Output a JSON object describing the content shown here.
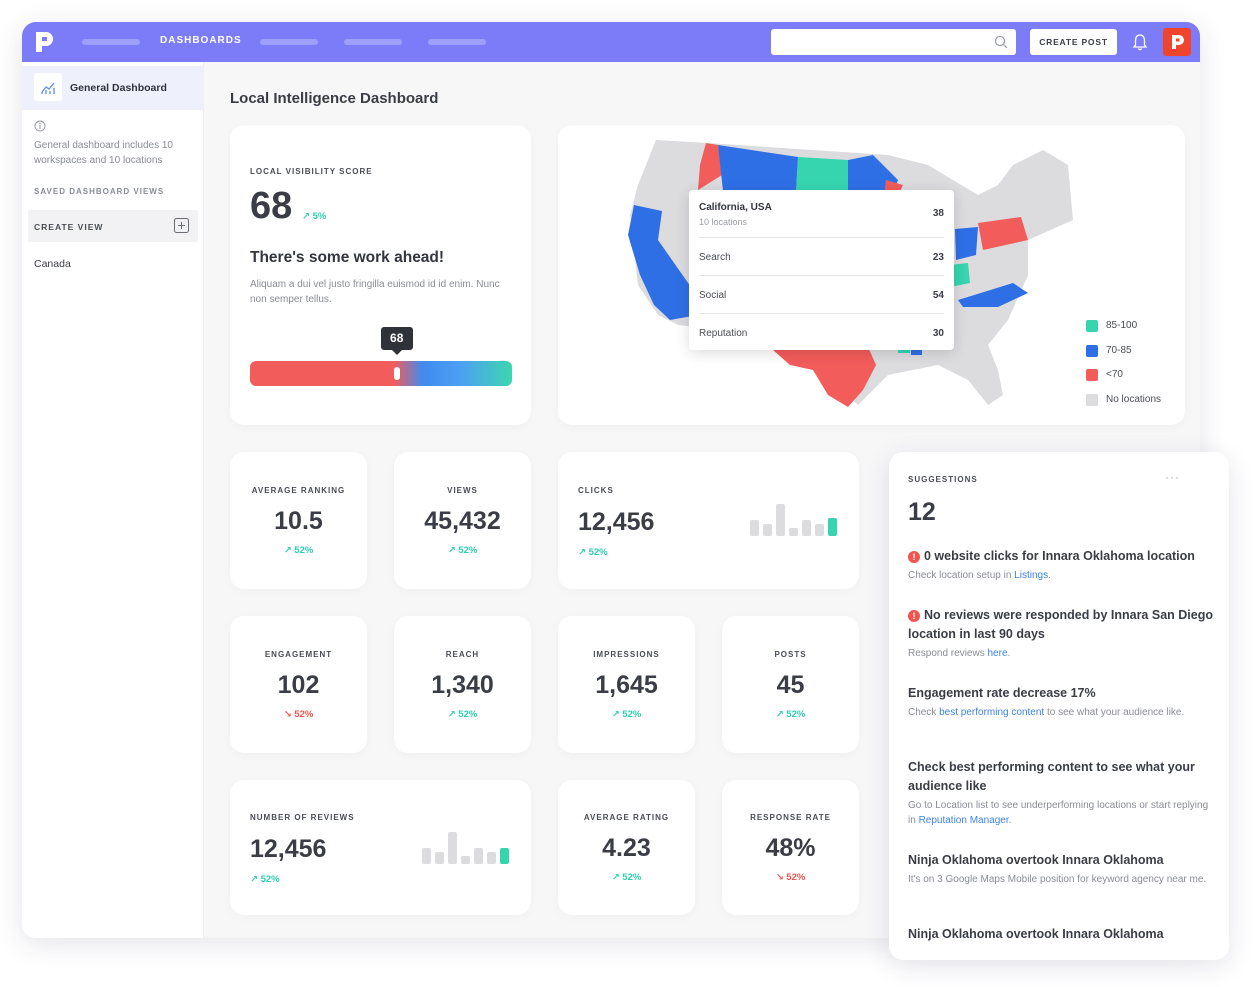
{
  "topbar": {
    "nav_active": "DASHBOARDS",
    "search_placeholder": "",
    "create_post": "CREATE POST"
  },
  "sidebar": {
    "active_item": "General Dashboard",
    "description": "General dashboard includes 10 workspaces and 10 locations",
    "saved_views_label": "SAVED DASHBOARD VIEWS",
    "create_view": "CREATE VIEW",
    "views": [
      "Canada"
    ]
  },
  "page_title": "Local Intelligence Dashboard",
  "visibility": {
    "label": "LOCAL VISIBILITY SCORE",
    "score": "68",
    "trend": "5%",
    "headline": "There's some work ahead!",
    "description": "Aliquam a dui vel justo fringilla euismod id id enim. Nunc non semper tellus.",
    "tooltip": "68",
    "progress": 0.56
  },
  "map": {
    "tooltip": {
      "title": "California, USA",
      "subtitle": "10 locations",
      "total": "38",
      "rows": [
        {
          "name": "Search",
          "value": "23"
        },
        {
          "name": "Social",
          "value": "54"
        },
        {
          "name": "Reputation",
          "value": "30"
        }
      ]
    },
    "legend": [
      {
        "label": "85-100",
        "color": "#36d5b0"
      },
      {
        "label": "70-85",
        "color": "#2f6fe6"
      },
      {
        "label": "<70",
        "color": "#f25c5b"
      },
      {
        "label": "No locations",
        "color": "#dcdcdf"
      }
    ]
  },
  "metrics": {
    "avg_ranking": {
      "label": "AVERAGE RANKING",
      "value": "10.5",
      "trend": "52%"
    },
    "views": {
      "label": "VIEWS",
      "value": "45,432",
      "trend": "52%"
    },
    "clicks": {
      "label": "CLICKS",
      "value": "12,456",
      "trend": "52%"
    },
    "engagement": {
      "label": "ENGAGEMENT",
      "value": "102",
      "trend": "52%"
    },
    "reach": {
      "label": "REACH",
      "value": "1,340",
      "trend": "52%"
    },
    "impressions": {
      "label": "IMPRESSIONS",
      "value": "1,645",
      "trend": "52%"
    },
    "posts": {
      "label": "POSTS",
      "value": "45",
      "trend": "52%"
    },
    "reviews": {
      "label": "NUMBER OF REVIEWS",
      "value": "12,456",
      "trend": "52%"
    },
    "avg_rating": {
      "label": "AVERAGE RATING",
      "value": "4.23",
      "trend": "52%"
    },
    "response_rate": {
      "label": "RESPONSE RATE",
      "value": "48%",
      "trend": "52%"
    }
  },
  "suggestions": {
    "label": "SUGGESTIONS",
    "more": "···",
    "count": "12",
    "items": [
      {
        "title": "0 website clicks for Innara Oklahoma location",
        "desc_pre": "Check location setup in ",
        "link": "Listings",
        "desc_post": "."
      },
      {
        "title": "No reviews were responded by Innara San Diego location in last 90 days",
        "desc_pre": "Respond reviews ",
        "link": "here",
        "desc_post": "."
      },
      {
        "title": "Engagement rate decrease 17%",
        "desc_pre": "Check ",
        "link": "best performing content",
        "desc_post": " to see what your audience like."
      },
      {
        "title": "Check best performing content to see what your audience like",
        "desc_pre": "Go to Location list to see underperforming locations or start replying in ",
        "link": "Reputation Manager",
        "desc_post": "."
      },
      {
        "title": "Ninja Oklahoma overtook Innara Oklahoma",
        "desc": "It's on 3 Google Maps Mobile position for keyword agency near me."
      },
      {
        "title": "Ninja Oklahoma overtook Innara Oklahoma"
      }
    ]
  }
}
